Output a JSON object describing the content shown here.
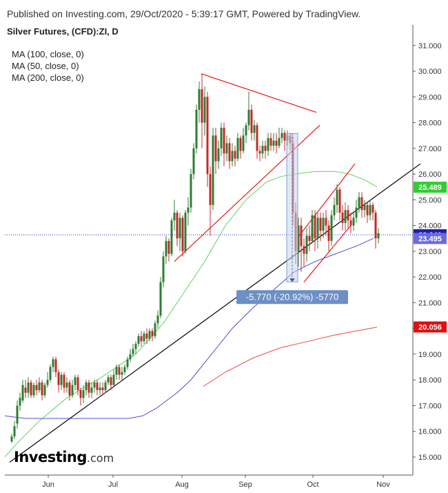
{
  "header": {
    "published": "Published on Investing.com, 29/Oct/2020 - 5:39:17 GMT, Powered by TradingView."
  },
  "legend": {
    "title": "Silver Futures, (CFD):ZI, D",
    "items": [
      "MA (100, close, 0)",
      "MA (50, close, 0)",
      "MA (200, close, 0)"
    ]
  },
  "logo": {
    "text": "Investing",
    "suffix": ".com"
  },
  "colors": {
    "up": "#2e7d32",
    "down": "#c62828",
    "ma50": "#5fd35f",
    "ma100": "#4c4ce0",
    "ma200": "#ee4444",
    "trend_red": "#ee1111",
    "trend_black": "#000000",
    "price_line": "#2222bb",
    "annotation_box": "#6688bb"
  },
  "chart_data": {
    "type": "candlestick",
    "ylim": [
      14.3,
      31.8
    ],
    "y_ticks": [
      "15.000",
      "16.000",
      "17.000",
      "18.000",
      "19.000",
      "20.000",
      "21.000",
      "22.000",
      "23.000",
      "24.000",
      "25.000",
      "26.000",
      "27.000",
      "28.000",
      "29.000",
      "30.000",
      "31.000"
    ],
    "x_ticks": [
      "Jun",
      "Jul",
      "Aug",
      "Sep",
      "Oct",
      "Nov"
    ],
    "grid": false,
    "price_labels": [
      {
        "name": "ma50",
        "value": 25.489,
        "label": "25.489",
        "color": "#33cc33"
      },
      {
        "name": "last",
        "value": 23.641,
        "label": "23.641",
        "color": "#1f1fa8"
      },
      {
        "name": "ma100",
        "value": 23.495,
        "label": "23.495",
        "color": "#6a6ae0"
      },
      {
        "name": "ma200",
        "value": 20.056,
        "label": "20.056",
        "color": "#dd1111"
      }
    ],
    "annotation": {
      "text": "-5.770 (-20.92%) -5770",
      "from_value": 27.58,
      "to_value": 21.81
    },
    "series": [
      {
        "name": "MA (50, close, 0)",
        "color": "#5fd35f",
        "points": [
          [
            0,
            15.0
          ],
          [
            20,
            15.6
          ],
          [
            50,
            16.4
          ],
          [
            90,
            17.3
          ],
          [
            140,
            18.1
          ],
          [
            190,
            19.0
          ],
          [
            230,
            20.2
          ],
          [
            260,
            21.4
          ],
          [
            290,
            22.6
          ],
          [
            320,
            24.0
          ],
          [
            350,
            25.0
          ],
          [
            380,
            25.7
          ],
          [
            400,
            25.9
          ],
          [
            420,
            26.0
          ],
          [
            450,
            26.1
          ],
          [
            480,
            26.1
          ],
          [
            500,
            26.0
          ],
          [
            520,
            25.8
          ],
          [
            540,
            25.5
          ]
        ]
      },
      {
        "name": "MA (100, close, 0)",
        "color": "#4c4ce0",
        "points": [
          [
            0,
            16.6
          ],
          [
            30,
            16.5
          ],
          [
            60,
            16.5
          ],
          [
            90,
            16.5
          ],
          [
            120,
            16.5
          ],
          [
            150,
            16.5
          ],
          [
            180,
            16.5
          ],
          [
            200,
            16.6
          ],
          [
            220,
            16.9
          ],
          [
            250,
            17.5
          ],
          [
            270,
            18.0
          ],
          [
            300,
            19.0
          ],
          [
            330,
            20.0
          ],
          [
            360,
            20.8
          ],
          [
            390,
            21.5
          ],
          [
            420,
            22.2
          ],
          [
            450,
            22.6
          ],
          [
            480,
            22.9
          ],
          [
            510,
            23.2
          ],
          [
            535,
            23.5
          ]
        ]
      },
      {
        "name": "MA (200, close, 0)",
        "color": "#ee4444",
        "points": [
          [
            288,
            17.75
          ],
          [
            320,
            18.3
          ],
          [
            360,
            18.85
          ],
          [
            400,
            19.25
          ],
          [
            440,
            19.5
          ],
          [
            480,
            19.75
          ],
          [
            520,
            19.95
          ],
          [
            540,
            20.05
          ]
        ]
      }
    ],
    "trendlines": [
      {
        "color": "#ee1111",
        "points": [
          [
            285,
            29.9
          ],
          [
            452,
            28.4
          ]
        ]
      },
      {
        "color": "#ee1111",
        "points": [
          [
            246,
            22.6
          ],
          [
            457,
            27.9
          ]
        ]
      },
      {
        "color": "#ee1111",
        "points": [
          [
            434,
            21.8
          ],
          [
            502,
            24.0
          ]
        ]
      },
      {
        "color": "#ee1111",
        "points": [
          [
            427,
            23.6
          ],
          [
            508,
            26.4
          ]
        ]
      },
      {
        "color": "#000000",
        "points": [
          [
            7,
            14.8
          ],
          [
            603,
            26.4
          ]
        ]
      }
    ],
    "candles": [
      [
        10,
        15.6,
        15.8,
        15.55,
        15.9
      ],
      [
        14,
        15.8,
        16.2,
        15.7,
        16.4
      ],
      [
        18,
        16.3,
        17.0,
        16.1,
        17.2
      ],
      [
        22,
        17.0,
        17.3,
        16.8,
        17.5
      ],
      [
        26,
        17.2,
        17.8,
        17.1,
        18.0
      ],
      [
        30,
        17.7,
        17.5,
        17.3,
        18.0
      ],
      [
        34,
        17.5,
        17.9,
        17.3,
        18.1
      ],
      [
        38,
        17.9,
        17.4,
        17.3,
        18.0
      ],
      [
        42,
        17.4,
        17.8,
        17.3,
        17.9
      ],
      [
        46,
        17.8,
        17.6,
        17.4,
        18.0
      ],
      [
        50,
        17.6,
        17.9,
        17.5,
        18.1
      ],
      [
        54,
        17.9,
        17.4,
        17.2,
        18.0
      ],
      [
        58,
        17.4,
        17.8,
        17.3,
        17.9
      ],
      [
        62,
        17.8,
        18.0,
        17.7,
        18.3
      ],
      [
        66,
        18.0,
        18.5,
        17.9,
        18.6
      ],
      [
        70,
        18.5,
        18.8,
        18.3,
        18.9
      ],
      [
        74,
        18.8,
        18.3,
        18.1,
        18.9
      ],
      [
        78,
        18.3,
        17.8,
        17.5,
        18.4
      ],
      [
        82,
        17.8,
        18.2,
        17.6,
        18.3
      ],
      [
        86,
        18.2,
        17.7,
        17.5,
        18.3
      ],
      [
        90,
        17.7,
        17.9,
        17.5,
        18.1
      ],
      [
        94,
        17.9,
        17.4,
        17.2,
        18.0
      ],
      [
        98,
        17.4,
        17.8,
        17.3,
        18.0
      ],
      [
        102,
        17.8,
        18.1,
        17.6,
        18.2
      ],
      [
        106,
        18.1,
        17.6,
        17.4,
        18.2
      ],
      [
        110,
        17.6,
        17.3,
        17.0,
        17.7
      ],
      [
        114,
        17.3,
        17.6,
        17.1,
        17.8
      ],
      [
        118,
        17.6,
        17.9,
        17.4,
        18.0
      ],
      [
        122,
        17.9,
        17.5,
        17.3,
        18.0
      ],
      [
        126,
        17.5,
        17.7,
        17.3,
        17.9
      ],
      [
        130,
        17.7,
        17.9,
        17.5,
        18.0
      ],
      [
        134,
        17.9,
        17.6,
        17.4,
        18.0
      ],
      [
        138,
        17.6,
        17.7,
        17.4,
        17.9
      ],
      [
        142,
        17.7,
        17.6,
        17.4,
        17.9
      ],
      [
        146,
        17.6,
        17.9,
        17.5,
        18.0
      ],
      [
        150,
        17.9,
        18.1,
        17.8,
        18.2
      ],
      [
        154,
        18.1,
        17.8,
        17.6,
        18.2
      ],
      [
        158,
        17.8,
        18.2,
        17.7,
        18.4
      ],
      [
        162,
        18.2,
        18.5,
        18.0,
        18.6
      ],
      [
        166,
        18.5,
        18.2,
        18.0,
        18.6
      ],
      [
        170,
        18.2,
        18.3,
        18.0,
        18.5
      ],
      [
        174,
        18.3,
        18.5,
        18.2,
        18.6
      ],
      [
        178,
        18.5,
        18.8,
        18.4,
        18.9
      ],
      [
        182,
        18.8,
        19.0,
        18.7,
        19.2
      ],
      [
        186,
        19.0,
        19.2,
        18.9,
        19.4
      ],
      [
        190,
        19.2,
        19.4,
        19.0,
        19.5
      ],
      [
        194,
        19.4,
        19.7,
        19.3,
        19.8
      ],
      [
        198,
        19.7,
        19.5,
        19.3,
        19.9
      ],
      [
        202,
        19.5,
        19.8,
        19.4,
        19.9
      ],
      [
        206,
        19.8,
        19.6,
        19.4,
        20.0
      ],
      [
        210,
        19.6,
        19.9,
        19.5,
        20.0
      ],
      [
        214,
        19.9,
        19.7,
        19.5,
        20.0
      ],
      [
        218,
        19.7,
        20.2,
        19.6,
        20.3
      ],
      [
        222,
        20.2,
        20.5,
        20.0,
        20.7
      ],
      [
        226,
        20.5,
        21.8,
        20.4,
        22.0
      ],
      [
        230,
        21.8,
        22.8,
        21.6,
        23.0
      ],
      [
        234,
        22.8,
        23.4,
        22.5,
        23.6
      ],
      [
        238,
        23.4,
        22.9,
        22.6,
        23.5
      ],
      [
        242,
        22.9,
        24.2,
        22.8,
        24.3
      ],
      [
        246,
        24.2,
        24.5,
        23.8,
        25.0
      ],
      [
        250,
        24.5,
        23.5,
        23.2,
        24.6
      ],
      [
        254,
        23.5,
        24.3,
        23.0,
        24.5
      ],
      [
        258,
        24.3,
        23.0,
        22.8,
        24.4
      ],
      [
        262,
        23.0,
        24.5,
        22.9,
        24.6
      ],
      [
        266,
        24.5,
        24.7,
        24.0,
        25.1
      ],
      [
        270,
        24.7,
        26.0,
        24.5,
        26.2
      ],
      [
        274,
        26.0,
        27.0,
        25.8,
        27.2
      ],
      [
        278,
        27.0,
        28.5,
        26.8,
        28.7
      ],
      [
        282,
        28.5,
        29.3,
        28.0,
        29.6
      ],
      [
        286,
        29.3,
        28.0,
        27.0,
        29.9
      ],
      [
        290,
        28.0,
        29.0,
        27.5,
        29.4
      ],
      [
        294,
        29.0,
        26.0,
        25.5,
        29.2
      ],
      [
        298,
        26.0,
        24.8,
        23.6,
        26.3
      ],
      [
        302,
        24.8,
        27.5,
        24.6,
        27.8
      ],
      [
        306,
        27.5,
        26.5,
        26.0,
        27.8
      ],
      [
        310,
        26.5,
        27.0,
        26.2,
        27.3
      ],
      [
        314,
        27.0,
        27.8,
        26.7,
        28.0
      ],
      [
        318,
        27.8,
        26.8,
        26.3,
        28.0
      ],
      [
        322,
        26.8,
        27.2,
        26.5,
        27.5
      ],
      [
        326,
        27.2,
        26.5,
        26.2,
        27.4
      ],
      [
        330,
        26.5,
        26.9,
        26.3,
        27.2
      ],
      [
        334,
        26.9,
        26.6,
        26.3,
        27.1
      ],
      [
        338,
        26.6,
        27.4,
        26.5,
        27.6
      ],
      [
        342,
        27.4,
        26.9,
        26.6,
        27.5
      ],
      [
        346,
        26.9,
        27.5,
        26.8,
        27.8
      ],
      [
        350,
        27.5,
        27.9,
        27.2,
        28.0
      ],
      [
        354,
        27.9,
        28.5,
        27.7,
        29.2
      ],
      [
        358,
        28.5,
        27.6,
        27.3,
        28.7
      ],
      [
        362,
        27.6,
        27.9,
        27.3,
        28.1
      ],
      [
        366,
        27.9,
        26.9,
        26.6,
        28.0
      ],
      [
        370,
        26.9,
        26.8,
        26.5,
        27.1
      ],
      [
        374,
        26.8,
        27.1,
        26.6,
        27.3
      ],
      [
        378,
        27.1,
        26.9,
        26.6,
        27.3
      ],
      [
        382,
        26.9,
        27.4,
        26.7,
        27.6
      ],
      [
        386,
        27.4,
        27.1,
        26.9,
        27.6
      ],
      [
        390,
        27.1,
        27.3,
        26.9,
        27.6
      ],
      [
        394,
        27.3,
        27.1,
        26.8,
        27.6
      ],
      [
        398,
        27.1,
        27.4,
        27.0,
        27.8
      ],
      [
        402,
        27.4,
        27.6,
        27.2,
        27.8
      ],
      [
        406,
        27.6,
        27.3,
        26.9,
        27.7
      ],
      [
        410,
        27.3,
        27.5,
        27.1,
        27.7
      ],
      [
        414,
        27.5,
        27.2,
        26.9,
        27.6
      ],
      [
        418,
        27.2,
        24.5,
        24.0,
        27.5
      ],
      [
        422,
        24.5,
        23.0,
        22.5,
        24.9
      ],
      [
        426,
        23.0,
        24.0,
        22.4,
        24.3
      ],
      [
        430,
        24.0,
        23.2,
        22.2,
        24.3
      ],
      [
        434,
        23.2,
        22.9,
        22.4,
        23.5
      ],
      [
        438,
        22.9,
        23.6,
        22.6,
        23.9
      ],
      [
        442,
        23.6,
        23.4,
        23.0,
        24.0
      ],
      [
        446,
        23.4,
        24.4,
        23.3,
        24.6
      ],
      [
        450,
        24.4,
        23.5,
        23.0,
        24.6
      ],
      [
        454,
        23.5,
        24.3,
        23.1,
        24.5
      ],
      [
        458,
        24.3,
        23.8,
        23.4,
        24.5
      ],
      [
        462,
        23.8,
        24.3,
        23.5,
        24.5
      ],
      [
        466,
        24.3,
        24.0,
        23.6,
        24.6
      ],
      [
        470,
        24.0,
        23.4,
        23.0,
        24.2
      ],
      [
        474,
        23.4,
        24.4,
        23.2,
        24.6
      ],
      [
        478,
        24.4,
        24.8,
        24.2,
        25.1
      ],
      [
        482,
        24.8,
        25.4,
        24.5,
        25.6
      ],
      [
        486,
        25.4,
        24.5,
        24.2,
        25.5
      ],
      [
        490,
        24.5,
        24.1,
        23.8,
        24.8
      ],
      [
        494,
        24.1,
        24.6,
        23.8,
        24.9
      ],
      [
        498,
        24.6,
        24.2,
        23.9,
        24.8
      ],
      [
        502,
        24.2,
        24.0,
        23.7,
        24.5
      ],
      [
        506,
        24.0,
        24.3,
        23.8,
        24.5
      ],
      [
        510,
        24.3,
        24.7,
        24.1,
        25.0
      ],
      [
        514,
        24.7,
        25.1,
        24.5,
        25.3
      ],
      [
        518,
        25.1,
        24.6,
        24.3,
        25.3
      ],
      [
        522,
        24.6,
        24.8,
        24.3,
        25.0
      ],
      [
        526,
        24.8,
        24.4,
        24.1,
        24.9
      ],
      [
        530,
        24.4,
        24.8,
        24.2,
        25.0
      ],
      [
        534,
        24.8,
        24.5,
        24.2,
        24.9
      ],
      [
        538,
        24.5,
        23.5,
        23.1,
        24.6
      ],
      [
        542,
        23.5,
        23.7,
        23.3,
        23.9
      ]
    ]
  }
}
